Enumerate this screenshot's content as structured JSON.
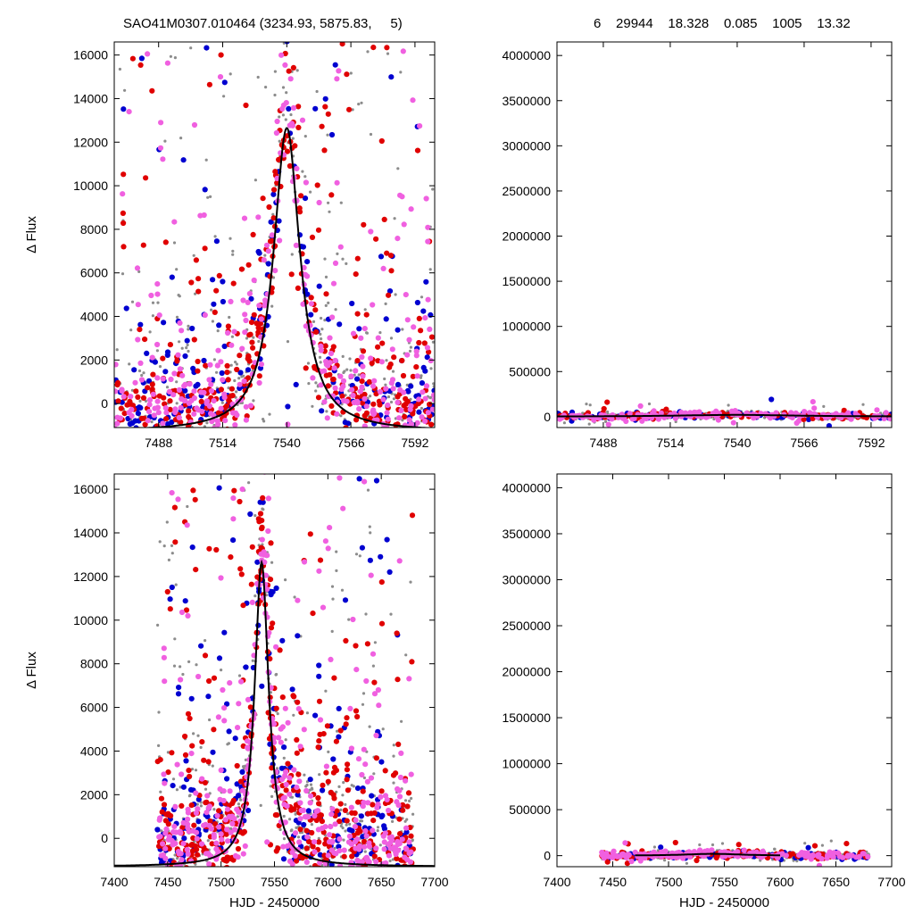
{
  "header": {
    "left_title": "SAO41M0307.010464 (3234.93, 5875.83,     5)",
    "right_stats": "6    29944    18.328    0.085    1005    13.32"
  },
  "colors": {
    "grey": "#8c8c8c",
    "red": "#e00000",
    "blue": "#0000d0",
    "magenta": "#f060e0",
    "model": "#000000",
    "frame": "#000000"
  },
  "chart_data": [
    {
      "id": "top-left",
      "type": "scatter",
      "xlabel": "",
      "ylabel": "Δ Flux",
      "xlim": [
        7470,
        7600
      ],
      "ylim": [
        -1100,
        16600
      ],
      "xticks": [
        7488,
        7514,
        7540,
        7566,
        7592
      ],
      "yticks": [
        0,
        2000,
        4000,
        6000,
        8000,
        10000,
        12000,
        14000,
        16000
      ],
      "model": {
        "peak_x": 7540,
        "peak_y": 12650,
        "width": 6.5,
        "baseline": -1300
      },
      "series": [
        {
          "color_key": "grey",
          "count": 420
        },
        {
          "color_key": "blue",
          "count": 240
        },
        {
          "color_key": "red",
          "count": 380
        },
        {
          "color_key": "magenta",
          "count": 360
        }
      ]
    },
    {
      "id": "top-right",
      "type": "scatter",
      "xlabel": "",
      "ylabel": "",
      "xlim": [
        7470,
        7600
      ],
      "ylim": [
        -120000,
        4150000
      ],
      "xticks": [
        7488,
        7514,
        7540,
        7566,
        7592
      ],
      "yticks": [
        0,
        500000,
        1000000,
        1500000,
        2000000,
        2500000,
        3000000,
        3500000,
        4000000
      ],
      "model": {
        "peak_x": 7540,
        "peak_y": 20000,
        "width": 30,
        "baseline": 0
      },
      "series": [
        {
          "color_key": "grey",
          "count": 300
        },
        {
          "color_key": "blue",
          "count": 80
        },
        {
          "color_key": "red",
          "count": 110
        },
        {
          "color_key": "magenta",
          "count": 160
        }
      ]
    },
    {
      "id": "bottom-left",
      "type": "scatter",
      "xlabel": "HJD - 2450000",
      "ylabel": "Δ Flux",
      "xlim": [
        7400,
        7700
      ],
      "ylim": [
        -1300,
        16700
      ],
      "xticks": [
        7400,
        7450,
        7500,
        7550,
        7600,
        7650,
        7700
      ],
      "yticks": [
        0,
        2000,
        4000,
        6000,
        8000,
        10000,
        12000,
        14000,
        16000
      ],
      "data_range": [
        7440,
        7680
      ],
      "model": {
        "peak_x": 7538,
        "peak_y": 12650,
        "width": 8,
        "baseline": -1300
      },
      "series": [
        {
          "color_key": "grey",
          "count": 480
        },
        {
          "color_key": "blue",
          "count": 260
        },
        {
          "color_key": "red",
          "count": 460
        },
        {
          "color_key": "magenta",
          "count": 420
        }
      ]
    },
    {
      "id": "bottom-right",
      "type": "scatter",
      "xlabel": "HJD - 2450000",
      "ylabel": "",
      "xlim": [
        7400,
        7700
      ],
      "ylim": [
        -120000,
        4150000
      ],
      "xticks": [
        7400,
        7450,
        7500,
        7550,
        7600,
        7650,
        7700
      ],
      "yticks": [
        0,
        500000,
        1000000,
        1500000,
        2000000,
        2500000,
        3000000,
        3500000,
        4000000
      ],
      "data_range": [
        7440,
        7680
      ],
      "model": {
        "peak_x": 7540,
        "peak_y": 20000,
        "width": 30,
        "baseline": 0,
        "x_from": 7470,
        "x_to": 7600
      },
      "series": [
        {
          "color_key": "grey",
          "count": 320
        },
        {
          "color_key": "blue",
          "count": 90
        },
        {
          "color_key": "red",
          "count": 120
        },
        {
          "color_key": "magenta",
          "count": 180
        }
      ]
    }
  ]
}
